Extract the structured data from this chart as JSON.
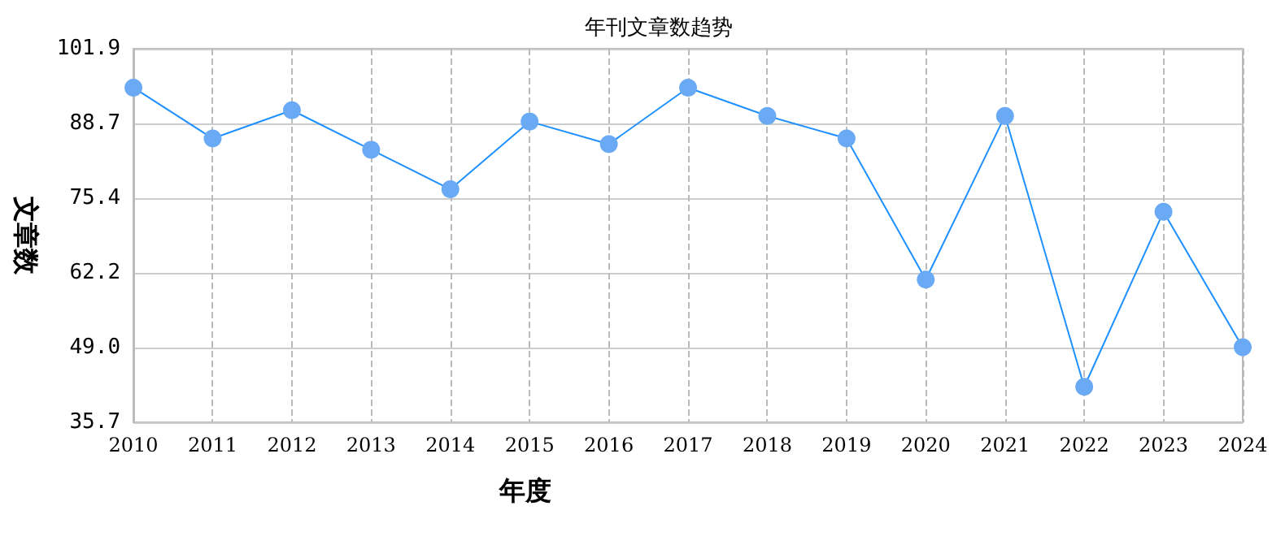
{
  "chart_data": {
    "type": "line",
    "title": "年刊文章数趋势",
    "xlabel": "年度",
    "ylabel": "文章数",
    "categories": [
      "2010",
      "2011",
      "2012",
      "2013",
      "2014",
      "2015",
      "2016",
      "2017",
      "2018",
      "2019",
      "2020",
      "2021",
      "2022",
      "2023",
      "2024"
    ],
    "series": [
      {
        "color": "#1e90ff",
        "values": [
          95,
          86,
          91,
          84,
          77,
          89,
          85,
          95,
          90,
          86,
          61,
          90,
          42,
          73,
          49
        ]
      }
    ],
    "ylim": [
      35.7,
      101.9
    ],
    "yticks": [
      35.7,
      {
        "value": 49,
        "label": "49.0"
      },
      62.2,
      75.4,
      88.7,
      101.9
    ],
    "grid": true,
    "marker": "circle",
    "line_style": "solid"
  }
}
